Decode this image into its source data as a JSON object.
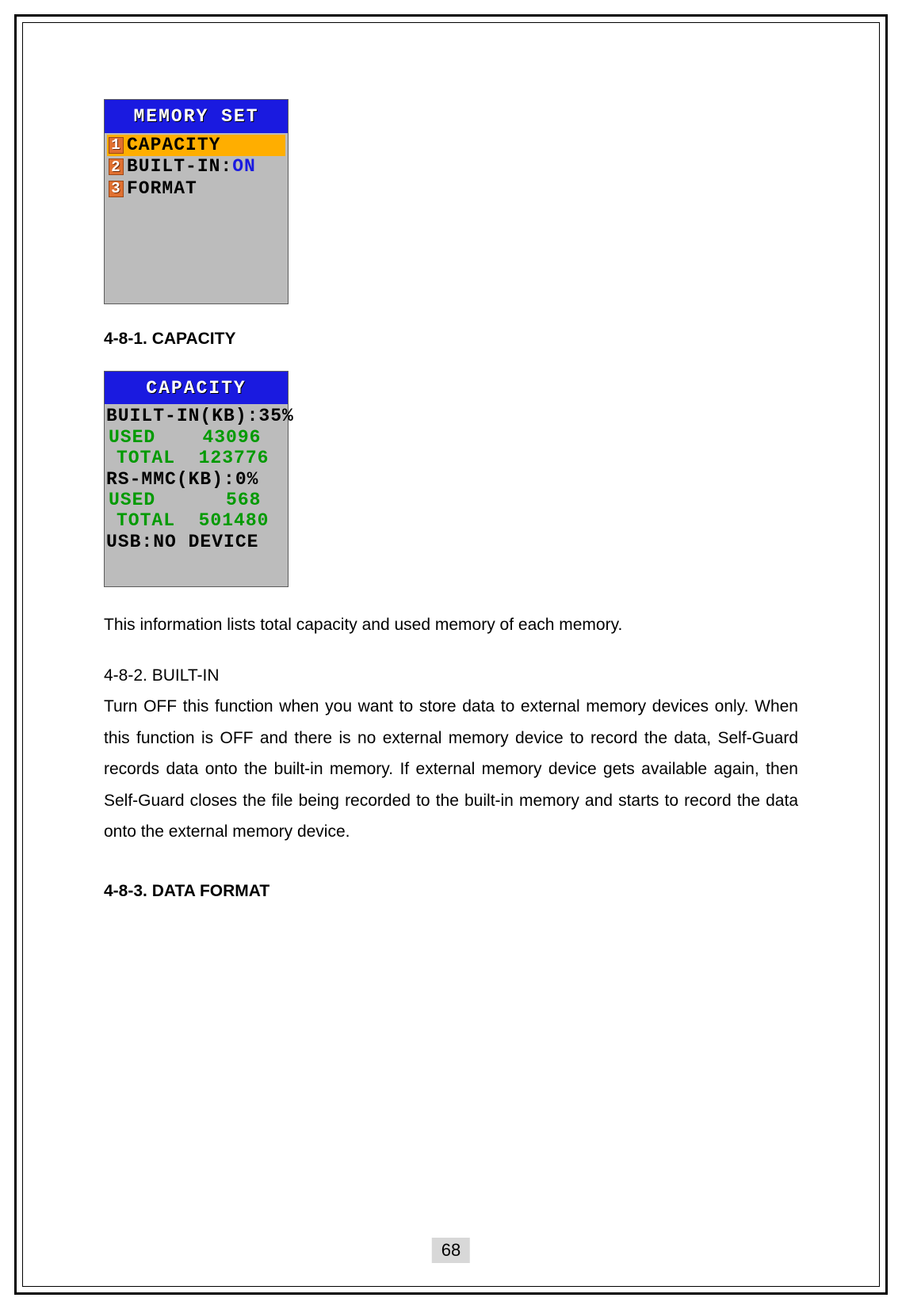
{
  "screens": {
    "memory_set": {
      "header": "MEMORY SET",
      "header_bg": "#1a1ae0",
      "header_fg": "#ffffff",
      "body_bg": "#bcbcbc",
      "selected_bg": "#ffae00",
      "num_bg": "#e07030",
      "num_fg": "#ffffff",
      "items": [
        {
          "num": "1",
          "label": "CAPACITY",
          "value": "",
          "value_color": "",
          "selected": true
        },
        {
          "num": "2",
          "label": "BUILT-IN:",
          "value": "ON",
          "value_color": "#1a1ae0",
          "selected": false
        },
        {
          "num": "3",
          "label": "FORMAT",
          "value": "",
          "value_color": "",
          "selected": false
        }
      ]
    },
    "capacity": {
      "header": "CAPACITY",
      "header_bg": "#1a1ae0",
      "header_fg": "#ffffff",
      "body_bg": "#bcbcbc",
      "text_black": "#000000",
      "text_green": "#009a00",
      "lines": {
        "builtin_label": "BUILT-IN(KB):35%",
        "builtin_used_label": "USED",
        "builtin_used_value": "43096",
        "builtin_total_label": "TOTAL",
        "builtin_total_value": "123776",
        "rsmmc_label": "RS-MMC(KB):0%",
        "rsmmc_used_label": "USED",
        "rsmmc_used_value": "568",
        "rsmmc_total_label": "TOTAL",
        "rsmmc_total_value": "501480",
        "usb_label": "USB:NO DEVICE"
      }
    }
  },
  "headings": {
    "h1": "4-8-1. CAPACITY",
    "h2": "4-8-2. BUILT-IN",
    "h3": "4-8-3. DATA FORMAT"
  },
  "body": {
    "capacity_desc": "This information lists total capacity and used memory of each memory.",
    "builtin_desc": "Turn OFF this function when you want to store data to external memory devices only. When this function is OFF and there is no external memory device to record the data, Self-Guard records data onto the built-in memory. If external memory device gets available again, then Self-Guard closes the file being recorded to the built-in memory and starts to record the data onto the external memory device."
  },
  "page_number": "68",
  "style": {
    "page_bg": "#ffffff",
    "border_color": "#000000",
    "heading_fontsize": 21,
    "body_fontsize": 21,
    "lcd_fontsize": 23,
    "pagenum_bg": "#d8d8d8"
  }
}
